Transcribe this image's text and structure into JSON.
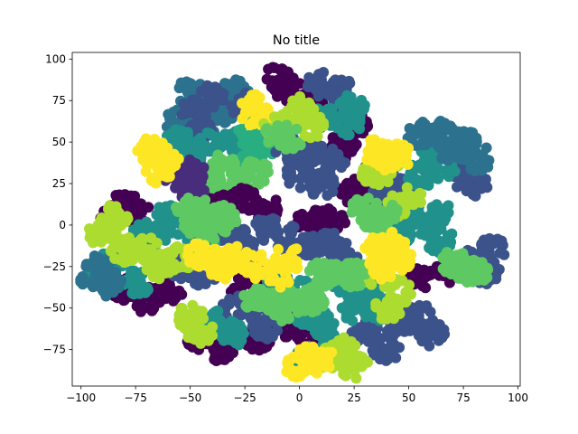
{
  "chart_data": {
    "type": "scatter",
    "title": "No title",
    "xlabel": "",
    "ylabel": "",
    "xlim": [
      -104,
      101
    ],
    "ylim": [
      -97,
      104
    ],
    "xticks": [
      -100,
      -75,
      -50,
      -25,
      0,
      25,
      50,
      75,
      100
    ],
    "yticks": [
      -75,
      -50,
      -25,
      0,
      25,
      50,
      75,
      100
    ],
    "grid": false,
    "colormap": "viridis",
    "colors": {
      "dark_purple": "#440154",
      "indigo": "#472d7b",
      "slate_blue": "#3b528b",
      "steel_blue": "#2c728e",
      "teal": "#21918c",
      "green_teal": "#28ae80",
      "green": "#5ec962",
      "lime": "#addc30",
      "yellow": "#fde725"
    },
    "series": [
      {
        "color": "#2c728e",
        "values": [
          [
            -45,
            72
          ],
          [
            -35,
            70
          ],
          [
            -50,
            80
          ],
          [
            -30,
            80
          ],
          [
            -55,
            62
          ],
          [
            -40,
            60
          ]
        ]
      },
      {
        "color": "#3b528b",
        "values": [
          [
            -40,
            77
          ],
          [
            -48,
            68
          ],
          [
            -25,
            72
          ],
          [
            -45,
            55
          ]
        ]
      },
      {
        "color": "#21918c",
        "values": [
          [
            -55,
            50
          ],
          [
            -42,
            48
          ],
          [
            -30,
            50
          ],
          [
            -50,
            40
          ]
        ]
      },
      {
        "color": "#28ae80",
        "values": [
          [
            -22,
            55
          ],
          [
            -15,
            50
          ],
          [
            -22,
            42
          ]
        ]
      },
      {
        "color": "#5ec962",
        "values": [
          [
            -35,
            35
          ],
          [
            -28,
            25
          ],
          [
            -20,
            32
          ],
          [
            -42,
            25
          ]
        ]
      },
      {
        "color": "#472d7b",
        "values": [
          [
            -50,
            32
          ],
          [
            -48,
            20
          ],
          [
            -55,
            27
          ]
        ]
      },
      {
        "color": "#fde725",
        "values": [
          [
            -68,
            45
          ],
          [
            -62,
            40
          ],
          [
            -65,
            33
          ],
          [
            -20,
            72
          ],
          [
            -20,
            65
          ]
        ]
      },
      {
        "color": "#440154",
        "values": [
          [
            -10,
            88
          ],
          [
            -5,
            82
          ],
          [
            5,
            73
          ],
          [
            20,
            48
          ],
          [
            25,
            60
          ],
          [
            -80,
            12
          ],
          [
            -85,
            5
          ],
          [
            -75,
            8
          ],
          [
            -25,
            15
          ],
          [
            -15,
            10
          ],
          [
            -35,
            12
          ],
          [
            5,
            2
          ],
          [
            12,
            0
          ],
          [
            15,
            5
          ],
          [
            -15,
            -30
          ],
          [
            -25,
            -38
          ],
          [
            -70,
            -45
          ],
          [
            -80,
            -38
          ],
          [
            -60,
            -40
          ],
          [
            -45,
            -68
          ],
          [
            -20,
            -70
          ],
          [
            -35,
            -75
          ],
          [
            65,
            -30
          ],
          [
            55,
            -32
          ],
          [
            -5,
            -60
          ],
          [
            5,
            -65
          ],
          [
            25,
            20
          ],
          [
            38,
            20
          ],
          [
            30,
            17
          ]
        ]
      },
      {
        "color": "#3b528b",
        "values": [
          [
            10,
            85
          ],
          [
            18,
            82
          ],
          [
            20,
            70
          ],
          [
            5,
            45
          ],
          [
            -5,
            45
          ],
          [
            15,
            38
          ],
          [
            0,
            30
          ],
          [
            -40,
            -5
          ],
          [
            -30,
            -8
          ],
          [
            -25,
            -15
          ],
          [
            -15,
            -3
          ],
          [
            -5,
            -8
          ],
          [
            5,
            -12
          ],
          [
            15,
            -10
          ],
          [
            20,
            -20
          ],
          [
            75,
            30
          ],
          [
            80,
            25
          ],
          [
            10,
            25
          ],
          [
            40,
            18
          ],
          [
            45,
            25
          ],
          [
            35,
            32
          ],
          [
            82,
            -20
          ],
          [
            88,
            -15
          ],
          [
            85,
            -28
          ],
          [
            -30,
            -50
          ],
          [
            -20,
            -50
          ],
          [
            -15,
            -62
          ],
          [
            55,
            -55
          ],
          [
            60,
            -65
          ],
          [
            45,
            -60
          ],
          [
            40,
            -75
          ],
          [
            30,
            -65
          ],
          [
            -45,
            -30
          ],
          [
            -55,
            -25
          ],
          [
            -50,
            -20
          ]
        ]
      },
      {
        "color": "#21918c",
        "values": [
          [
            25,
            72
          ],
          [
            22,
            62
          ],
          [
            10,
            65
          ],
          [
            -60,
            5
          ],
          [
            -65,
            -5
          ],
          [
            -70,
            -5
          ],
          [
            -45,
            -10
          ],
          [
            -55,
            0
          ],
          [
            60,
            45
          ],
          [
            65,
            35
          ],
          [
            55,
            30
          ],
          [
            50,
            8
          ],
          [
            58,
            0
          ],
          [
            65,
            5
          ],
          [
            65,
            -10
          ],
          [
            45,
            -5
          ],
          [
            -75,
            -35
          ],
          [
            -90,
            -30
          ],
          [
            -85,
            -20
          ],
          [
            -10,
            -35
          ],
          [
            0,
            -40
          ],
          [
            5,
            -55
          ],
          [
            10,
            -60
          ],
          [
            15,
            -72
          ],
          [
            5,
            -80
          ],
          [
            25,
            -50
          ],
          [
            30,
            -40
          ],
          [
            35,
            -50
          ],
          [
            20,
            -35
          ],
          [
            -40,
            -58
          ],
          [
            -30,
            -65
          ]
        ]
      },
      {
        "color": "#2c728e",
        "values": [
          [
            55,
            55
          ],
          [
            65,
            55
          ],
          [
            75,
            50
          ],
          [
            70,
            45
          ],
          [
            82,
            40
          ],
          [
            -90,
            -25
          ],
          [
            -88,
            -35
          ],
          [
            -95,
            -30
          ]
        ]
      },
      {
        "color": "#addc30",
        "values": [
          [
            0,
            70
          ],
          [
            -10,
            60
          ],
          [
            5,
            60
          ],
          [
            -50,
            -55
          ],
          [
            -45,
            -65
          ],
          [
            -65,
            -25
          ],
          [
            -70,
            -15
          ],
          [
            -55,
            -20
          ],
          [
            -85,
            5
          ],
          [
            -80,
            -15
          ],
          [
            -90,
            -5
          ],
          [
            15,
            -80
          ],
          [
            25,
            -85
          ],
          [
            20,
            -75
          ],
          [
            45,
            -40
          ],
          [
            40,
            -50
          ],
          [
            30,
            -30
          ],
          [
            35,
            30
          ],
          [
            40,
            38
          ],
          [
            45,
            12
          ],
          [
            50,
            15
          ]
        ]
      },
      {
        "color": "#5ec962",
        "values": [
          [
            -10,
            55
          ],
          [
            -5,
            52
          ],
          [
            -48,
            2
          ],
          [
            -35,
            5
          ],
          [
            -40,
            -2
          ],
          [
            30,
            10
          ],
          [
            40,
            5
          ],
          [
            35,
            0
          ],
          [
            10,
            -30
          ],
          [
            20,
            -28
          ],
          [
            25,
            -30
          ],
          [
            0,
            -45
          ],
          [
            5,
            -45
          ],
          [
            70,
            -22
          ],
          [
            75,
            -25
          ],
          [
            80,
            -28
          ],
          [
            -20,
            -45
          ],
          [
            -12,
            -45
          ],
          [
            -8,
            -50
          ],
          [
            -50,
            10
          ],
          [
            -45,
            8
          ]
        ]
      },
      {
        "color": "#fde725",
        "values": [
          [
            -45,
            -18
          ],
          [
            -40,
            -22
          ],
          [
            -35,
            -25
          ],
          [
            -30,
            -20
          ],
          [
            -20,
            -25
          ],
          [
            -10,
            -30
          ],
          [
            -5,
            -20
          ],
          [
            5,
            -80
          ],
          [
            0,
            -85
          ],
          [
            10,
            -82
          ],
          [
            40,
            40
          ],
          [
            35,
            45
          ],
          [
            45,
            42
          ],
          [
            42,
            -12
          ],
          [
            45,
            -20
          ],
          [
            38,
            -25
          ],
          [
            35,
            -15
          ]
        ]
      }
    ]
  }
}
